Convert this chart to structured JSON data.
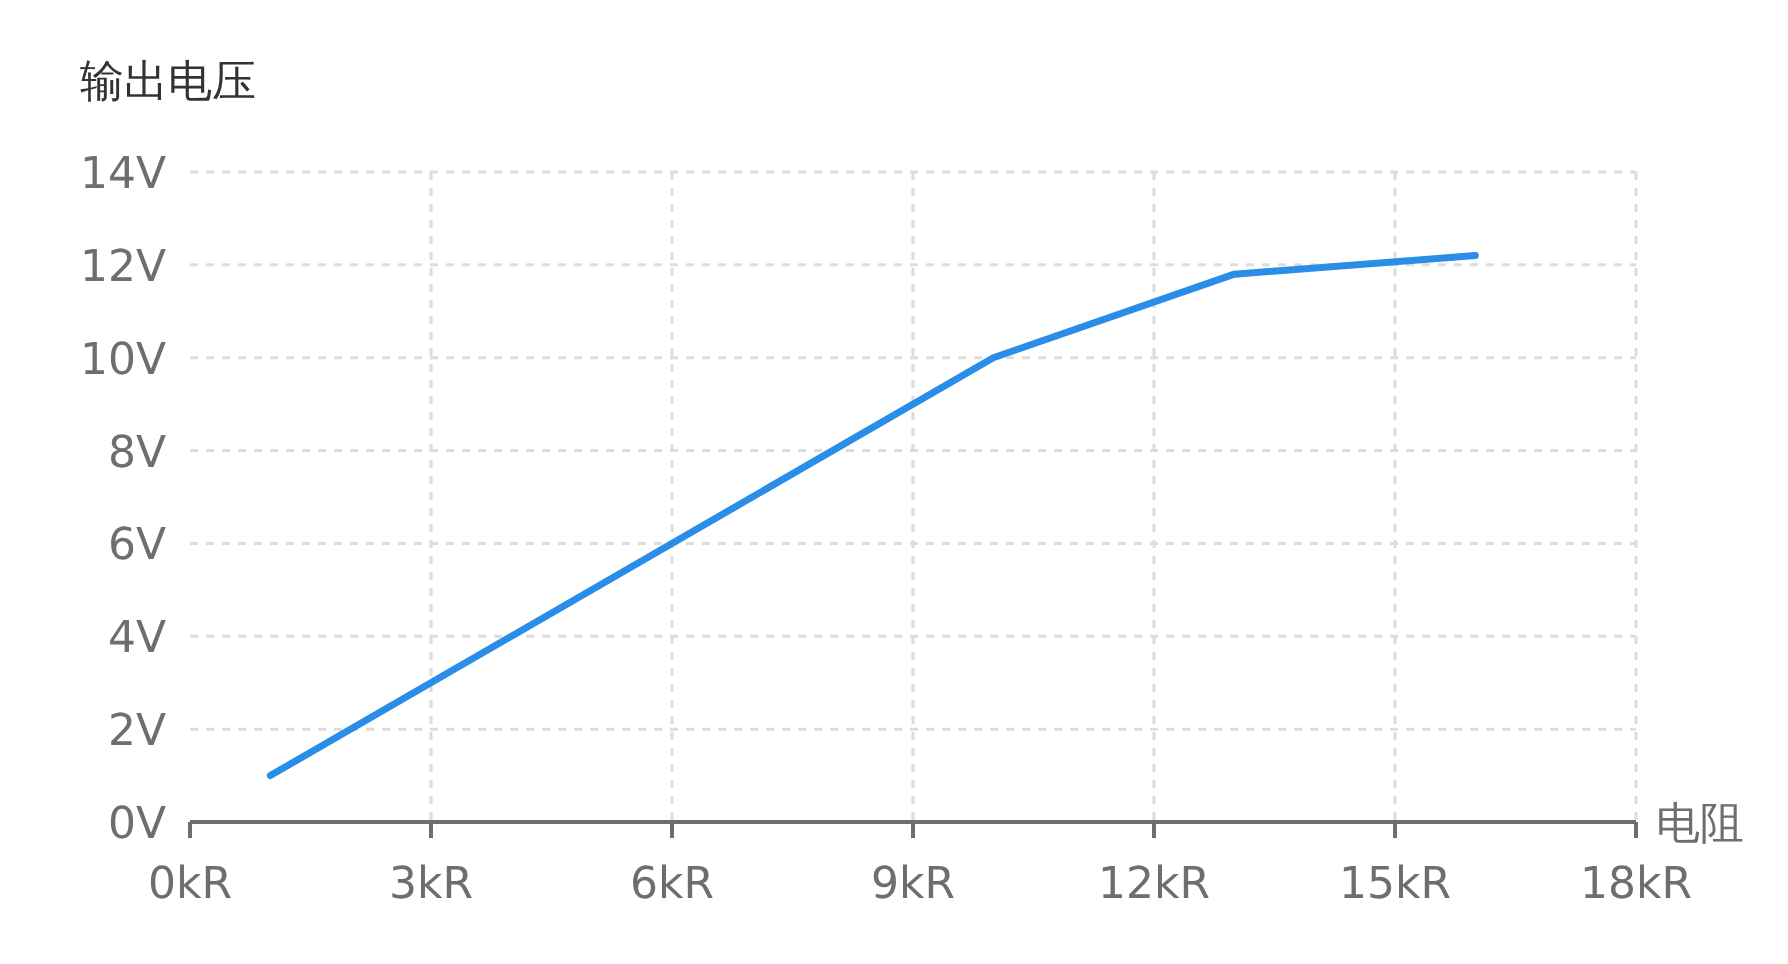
{
  "chart_data": {
    "type": "line",
    "xlabel": "电阻",
    "ylabel": "输出电压",
    "x": [
      1,
      10,
      13,
      16
    ],
    "series": [
      {
        "color": "#2a8ee8",
        "values": [
          1,
          10,
          11.8,
          12.2
        ]
      }
    ],
    "xlim": [
      0,
      18
    ],
    "ylim": [
      0,
      14
    ],
    "xticks": [
      {
        "value": 0,
        "label": "0kR"
      },
      {
        "value": 3,
        "label": "3kR"
      },
      {
        "value": 6,
        "label": "6kR"
      },
      {
        "value": 9,
        "label": "9kR"
      },
      {
        "value": 12,
        "label": "12kR"
      },
      {
        "value": 15,
        "label": "15kR"
      },
      {
        "value": 18,
        "label": "18kR"
      }
    ],
    "yticks": [
      {
        "value": 0,
        "label": "0V"
      },
      {
        "value": 2,
        "label": "2V"
      },
      {
        "value": 4,
        "label": "4V"
      },
      {
        "value": 6,
        "label": "6V"
      },
      {
        "value": 8,
        "label": "8V"
      },
      {
        "value": 10,
        "label": "10V"
      },
      {
        "value": 12,
        "label": "12V"
      },
      {
        "value": 14,
        "label": "14V"
      }
    ],
    "grid": true,
    "marker": "none",
    "line_style": "solid"
  }
}
